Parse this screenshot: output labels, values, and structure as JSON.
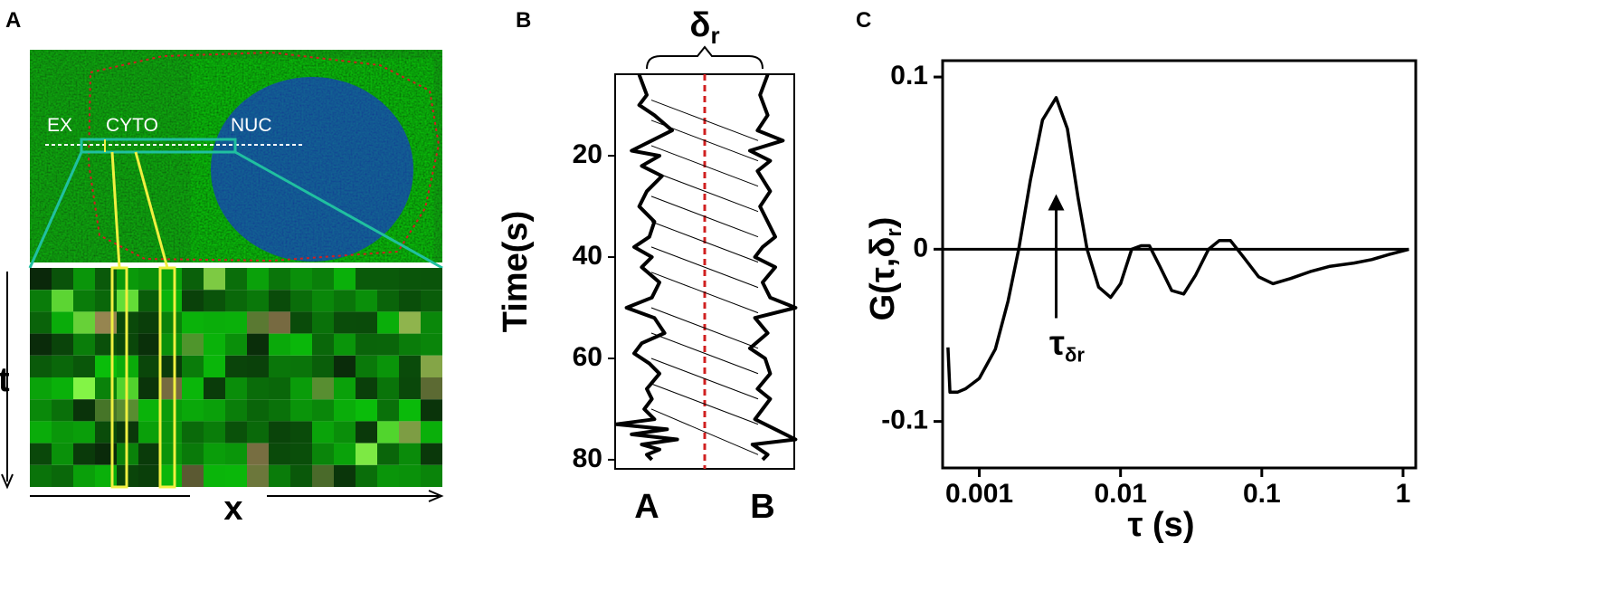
{
  "panel_labels": [
    "A",
    "B",
    "C"
  ],
  "image_panel": {
    "region_labels": [
      "EX",
      "CYTO",
      "NUC"
    ],
    "x_axis_label": "x",
    "y_axis_label": "t"
  },
  "chart_data": [
    {
      "type": "trace",
      "ylabel": "Time(s)",
      "ylim": [
        3.9,
        81.8
      ],
      "yticks": [
        20,
        40,
        60,
        80
      ],
      "categories": [
        "A",
        "B"
      ],
      "annotation": {
        "symbol": "δ",
        "subscript": "r"
      },
      "series": [
        {
          "name": "A",
          "color": "#000000",
          "x": [
            4,
            8,
            10,
            12,
            15,
            17,
            19,
            20,
            22,
            24,
            27,
            30,
            33,
            36,
            38,
            40,
            42,
            45,
            48,
            50,
            52,
            55,
            57,
            59,
            61,
            63,
            66,
            68,
            70,
            72,
            73,
            74,
            75,
            76,
            77,
            78,
            79,
            80
          ],
          "values": [
            -0.3,
            0,
            -0.3,
            0.3,
            1.0,
            0.2,
            -0.6,
            0.5,
            -0.2,
            0.6,
            0,
            -0.3,
            0.3,
            0.1,
            -0.5,
            0.2,
            -0.2,
            0.5,
            0.2,
            -0.8,
            0.3,
            0.7,
            -0.2,
            -0.5,
            0.1,
            0.5,
            0,
            0.2,
            -0.1,
            0.3,
            -1.2,
            0.8,
            -0.6,
            1.2,
            -0.2,
            0.5,
            0,
            0.2
          ]
        },
        {
          "name": "B",
          "color": "#000000",
          "x": [
            4,
            8,
            12,
            15,
            17,
            19,
            21,
            23,
            27,
            30,
            33,
            36,
            38,
            40,
            42,
            45,
            48,
            50,
            52,
            55,
            58,
            60,
            63,
            66,
            68,
            70,
            72,
            74,
            76,
            77,
            79,
            80
          ],
          "values": [
            0.2,
            -0.1,
            0.2,
            -0.2,
            0.8,
            -0.5,
            0.3,
            -0.2,
            0.3,
            -0.1,
            0.2,
            0.5,
            0,
            -0.3,
            0.5,
            0,
            0.3,
            1.3,
            -0.3,
            0.2,
            -0.5,
            0.1,
            0.3,
            -0.2,
            0.3,
            0,
            -0.3,
            0.5,
            1.3,
            -0.4,
            0.2,
            0
          ]
        }
      ],
      "links": [
        [
          9,
          17
        ],
        [
          13,
          21
        ],
        [
          18,
          26
        ],
        [
          23,
          31
        ],
        [
          28,
          36
        ],
        [
          33,
          41
        ],
        [
          38,
          46
        ],
        [
          43,
          51
        ],
        [
          50,
          58
        ],
        [
          55,
          63
        ],
        [
          60,
          68
        ],
        [
          65,
          73
        ],
        [
          70,
          79
        ]
      ]
    },
    {
      "type": "line",
      "ylabel": {
        "text": "G(τ,δ",
        "subscript": "r",
        "close": ")"
      },
      "xlabel": "τ (s)",
      "log_x": true,
      "xlim": [
        0.00055,
        1.23
      ],
      "ylim": [
        -0.127,
        0.1095
      ],
      "xticks": [
        0.001,
        0.01,
        0.1,
        1
      ],
      "yticks": [
        0.1,
        0,
        -0.1
      ],
      "annotation": {
        "text": "τ",
        "subscript": "δr",
        "x": 0.0035,
        "y_from": -0.04,
        "y_to": 0.032
      },
      "series": [
        {
          "name": "G",
          "color": "#000000",
          "x": [
            0.0006,
            0.00062,
            0.0007,
            0.0008,
            0.001,
            0.0013,
            0.0016,
            0.0019,
            0.0023,
            0.0028,
            0.0035,
            0.0042,
            0.005,
            0.0058,
            0.007,
            0.0085,
            0.01,
            0.012,
            0.014,
            0.016,
            0.019,
            0.023,
            0.028,
            0.034,
            0.042,
            0.05,
            0.06,
            0.075,
            0.095,
            0.12,
            0.16,
            0.22,
            0.3,
            0.45,
            0.6,
            0.8,
            1.1
          ],
          "values": [
            -0.057,
            -0.083,
            -0.083,
            -0.081,
            -0.075,
            -0.058,
            -0.03,
            0,
            0.04,
            0.075,
            0.088,
            0.07,
            0.03,
            0,
            -0.022,
            -0.028,
            -0.02,
            0,
            0.002,
            0.002,
            -0.01,
            -0.024,
            -0.026,
            -0.015,
            0,
            0.005,
            0.005,
            -0.005,
            -0.016,
            -0.02,
            -0.017,
            -0.013,
            -0.01,
            -0.008,
            -0.006,
            -0.003,
            0
          ]
        }
      ]
    }
  ]
}
